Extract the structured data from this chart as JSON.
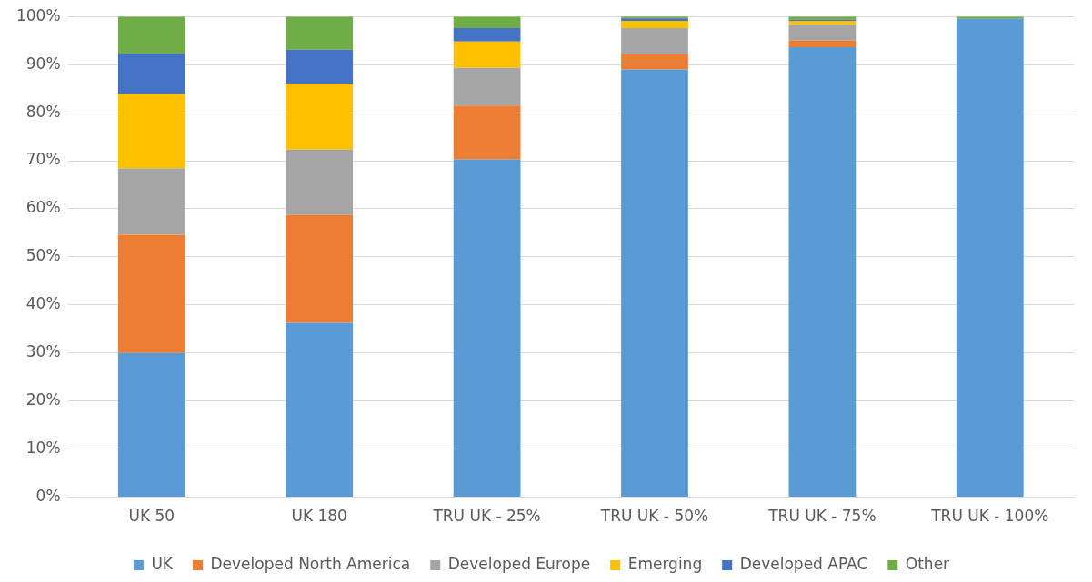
{
  "chart_data": {
    "type": "bar",
    "stacked": true,
    "categories": [
      "UK 50",
      "UK 180",
      "TRU UK - 25%",
      "TRU UK - 50%",
      "TRU UK - 75%",
      "TRU UK - 100%"
    ],
    "series": [
      {
        "name": "UK",
        "color": "#5b9bd5",
        "values": [
          30,
          36.3,
          70.3,
          89,
          93.6,
          99.5
        ]
      },
      {
        "name": "Developed North America",
        "color": "#ed7d31",
        "values": [
          24.6,
          22.4,
          11.2,
          3.1,
          1.4,
          0
        ]
      },
      {
        "name": "Developed Europe",
        "color": "#a5a5a5",
        "values": [
          13.8,
          13.6,
          7.8,
          5.5,
          3.3,
          0
        ]
      },
      {
        "name": "Emerging",
        "color": "#ffc000",
        "values": [
          15.5,
          13.7,
          5.5,
          1.5,
          0.8,
          0
        ]
      },
      {
        "name": "Developed APAC",
        "color": "#4472c4",
        "values": [
          8.4,
          7.1,
          2.8,
          0.5,
          0.3,
          0
        ]
      },
      {
        "name": "Other",
        "color": "#70ad47",
        "values": [
          7.7,
          6.9,
          2.4,
          0.4,
          0.6,
          0.5
        ]
      }
    ],
    "ylim": [
      0,
      100
    ],
    "yticks": [
      {
        "value": 0,
        "label": "0%"
      },
      {
        "value": 10,
        "label": "10%"
      },
      {
        "value": 20,
        "label": "20%"
      },
      {
        "value": 30,
        "label": "30%"
      },
      {
        "value": 40,
        "label": "40%"
      },
      {
        "value": 50,
        "label": "50%"
      },
      {
        "value": 60,
        "label": "60%"
      },
      {
        "value": 70,
        "label": "70%"
      },
      {
        "value": 80,
        "label": "80%"
      },
      {
        "value": 90,
        "label": "90%"
      },
      {
        "value": 100,
        "label": "100%"
      }
    ],
    "grid": "y",
    "legend": "bottom"
  }
}
